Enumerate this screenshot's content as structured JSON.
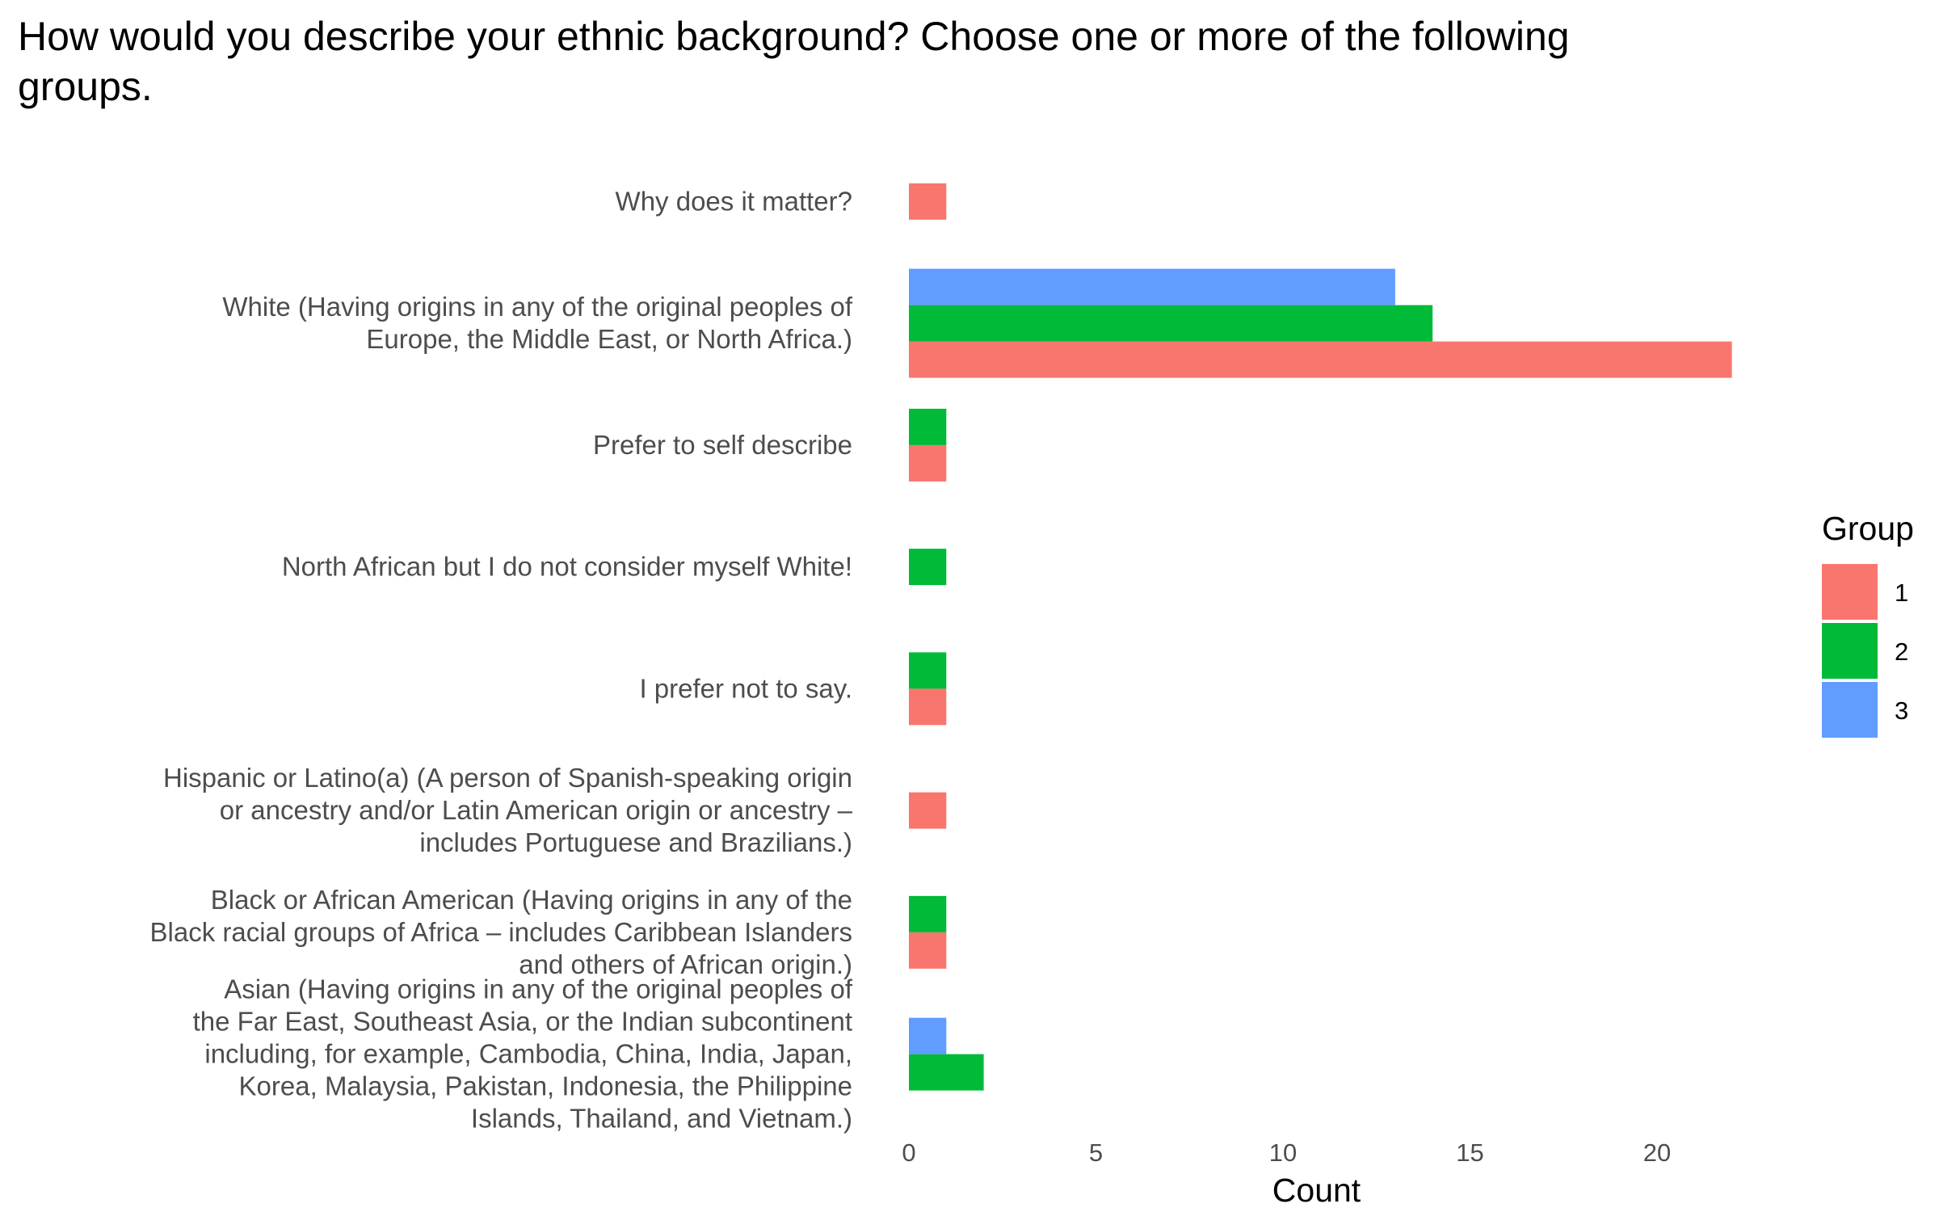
{
  "chart_data": {
    "type": "bar",
    "orientation": "horizontal",
    "title": "How would you describe your ethnic background? Choose one or more of the following groups.",
    "xlabel": "Count",
    "ylabel": "",
    "xlim": [
      0,
      23
    ],
    "xticks": [
      0,
      5,
      10,
      15,
      20
    ],
    "grid": false,
    "legend": {
      "title": "Group",
      "position": "right"
    },
    "categories": [
      "Why does it matter?",
      "White (Having origins in any of the original peoples of\nEurope, the Middle East, or North Africa.)",
      "Prefer to self describe",
      "North African but I do not consider myself White!",
      "I prefer not to say.",
      "Hispanic or Latino(a) (A person of Spanish-speaking origin\nor ancestry and/or Latin American origin or ancestry –\nincludes Portuguese and Brazilians.)",
      "Black or African American (Having origins in any of the\nBlack racial groups of Africa – includes Caribbean Islanders\nand others of African origin.)",
      "Asian (Having origins in any of the original peoples of\nthe Far East, Southeast Asia, or the Indian subcontinent\nincluding, for example, Cambodia, China, India, Japan,\nKorea, Malaysia, Pakistan, Indonesia, the Philippine\nIslands, Thailand, and Vietnam.)"
    ],
    "series": [
      {
        "name": "1",
        "color": "#F8766D",
        "values": [
          1,
          22,
          1,
          0,
          1,
          1,
          1,
          0
        ]
      },
      {
        "name": "2",
        "color": "#00BA38",
        "values": [
          0,
          14,
          1,
          1,
          1,
          0,
          1,
          2
        ]
      },
      {
        "name": "3",
        "color": "#619CFF",
        "values": [
          0,
          13,
          0,
          0,
          0,
          0,
          0,
          1
        ]
      }
    ]
  }
}
